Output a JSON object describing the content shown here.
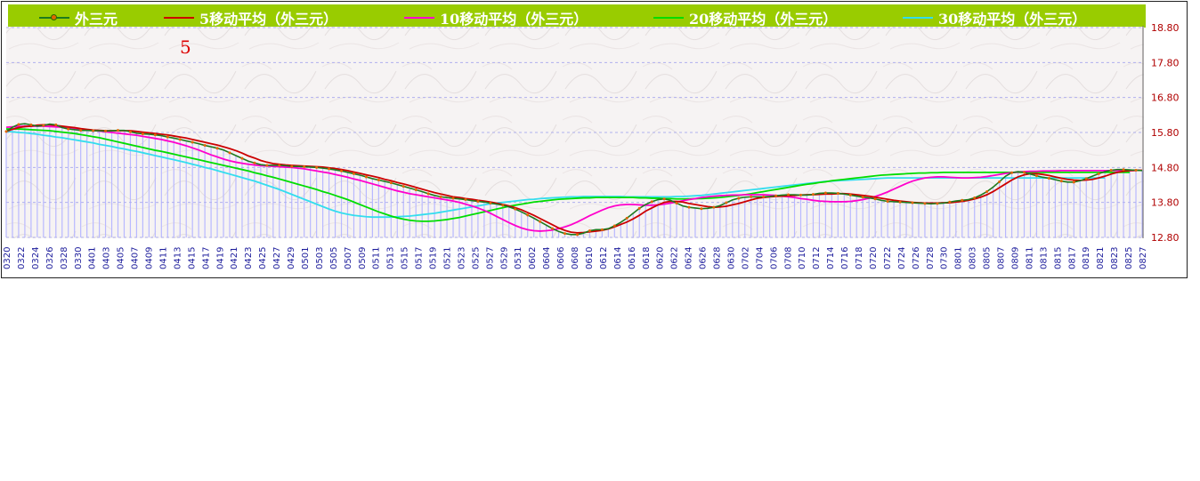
{
  "legend": {
    "items": [
      {
        "label": "外三元",
        "color": "#1e7a1e",
        "marker": true
      },
      {
        "label": "5移动平均（外三元）",
        "color": "#cc0000"
      },
      {
        "label": "10移动平均（外三元）",
        "color": "#ff00cc"
      },
      {
        "label": "20移动平均（外三元）",
        "color": "#00dd00"
      },
      {
        "label": "30移动平均（外三元）",
        "color": "#33ddee"
      }
    ]
  },
  "annotation": "5",
  "colors": {
    "legend_bg": "#99cc00",
    "bars": "#b8b8ff",
    "grid": "#b0b0ee",
    "price": "#1e7a1e",
    "price_marker": "#e06600"
  },
  "chart_data": {
    "type": "line",
    "title": "",
    "xlabel": "",
    "ylabel": "",
    "ylim": [
      12.8,
      18.8
    ],
    "yticks": [
      "12.80",
      "13.80",
      "14.80",
      "15.80",
      "16.80",
      "17.80",
      "18.80"
    ],
    "y_axis_position": "right",
    "grid": true,
    "legend_position": "top",
    "x_tick_labels": [
      "0320",
      "0322",
      "0324",
      "0326",
      "0328",
      "0330",
      "0401",
      "0403",
      "0405",
      "0407",
      "0409",
      "0411",
      "0413",
      "0415",
      "0417",
      "0419",
      "0421",
      "0423",
      "0425",
      "0427",
      "0429",
      "0501",
      "0503",
      "0505",
      "0507",
      "0509",
      "0511",
      "0513",
      "0515",
      "0517",
      "0519",
      "0521",
      "0523",
      "0525",
      "0527",
      "0529",
      "0531",
      "0602",
      "0604",
      "0606",
      "0608",
      "0610",
      "0612",
      "0614",
      "0616",
      "0618",
      "0620",
      "0622",
      "0624",
      "0626",
      "0628",
      "0630",
      "0702",
      "0704",
      "0706",
      "0708",
      "0710",
      "0712",
      "0714",
      "0716",
      "0718",
      "0720",
      "0722",
      "0724",
      "0726",
      "0728",
      "0730",
      "0801",
      "0803",
      "0805",
      "0807",
      "0809",
      "0811",
      "0813",
      "0815",
      "0817",
      "0819",
      "0821",
      "0823",
      "0825",
      "0827"
    ],
    "series": [
      {
        "name": "外三元",
        "values": [
          15.83,
          15.95,
          16.03,
          16.05,
          16.02,
          15.98,
          16.0,
          16.04,
          16.02,
          15.94,
          15.9,
          15.88,
          15.86,
          15.86,
          15.85,
          15.85,
          15.84,
          15.85,
          15.86,
          15.86,
          15.82,
          15.78,
          15.76,
          15.75,
          15.73,
          15.71,
          15.67,
          15.64,
          15.6,
          15.56,
          15.52,
          15.48,
          15.43,
          15.39,
          15.35,
          15.3,
          15.22,
          15.14,
          15.06,
          14.98,
          14.93,
          14.88,
          14.86,
          14.86,
          14.86,
          14.85,
          14.83,
          14.83,
          14.82,
          14.81,
          14.8,
          14.78,
          14.76,
          14.73,
          14.7,
          14.66,
          14.62,
          14.58,
          14.53,
          14.48,
          14.44,
          14.4,
          14.36,
          14.31,
          14.26,
          14.21,
          14.16,
          14.11,
          14.05,
          14.0,
          13.96,
          13.94,
          13.92,
          13.9,
          13.88,
          13.85,
          13.83,
          13.81,
          13.78,
          13.75,
          13.72,
          13.67,
          13.61,
          13.53,
          13.44,
          13.35,
          13.25,
          13.15,
          13.05,
          12.97,
          12.91,
          12.88,
          12.88,
          12.92,
          12.99,
          13.02,
          13.02,
          13.05,
          13.13,
          13.23,
          13.35,
          13.49,
          13.63,
          13.74,
          13.82,
          13.88,
          13.9,
          13.86,
          13.78,
          13.7,
          13.66,
          13.64,
          13.62,
          13.63,
          13.66,
          13.71,
          13.79,
          13.87,
          13.92,
          13.95,
          13.96,
          13.96,
          13.96,
          13.97,
          13.99,
          14.01,
          14.02,
          14.02,
          14.01,
          14.01,
          14.03,
          14.06,
          14.07,
          14.07,
          14.06,
          14.04,
          14.01,
          13.98,
          13.95,
          13.93,
          13.9,
          13.86,
          13.83,
          13.82,
          13.81,
          13.8,
          13.79,
          13.78,
          13.77,
          13.76,
          13.77,
          13.78,
          13.81,
          13.84,
          13.86,
          13.88,
          13.93,
          14.01,
          14.11,
          14.24,
          14.39,
          14.55,
          14.65,
          14.68,
          14.66,
          14.61,
          14.56,
          14.52,
          14.49,
          14.45,
          14.41,
          14.38,
          14.38,
          14.42,
          14.48,
          14.55,
          14.62,
          14.68,
          14.72,
          14.74,
          14.74,
          14.73,
          14.72,
          14.71
        ]
      },
      {
        "name": "5移动平均（外三元）",
        "values": [
          15.83,
          15.89,
          15.94,
          15.97,
          15.98,
          16.01,
          16.02,
          16.02,
          16.0,
          15.98,
          15.96,
          15.94,
          15.91,
          15.89,
          15.87,
          15.86,
          15.85,
          15.85,
          15.85,
          15.85,
          15.85,
          15.83,
          15.81,
          15.79,
          15.77,
          15.75,
          15.73,
          15.7,
          15.67,
          15.64,
          15.6,
          15.56,
          15.52,
          15.48,
          15.44,
          15.39,
          15.34,
          15.28,
          15.21,
          15.13,
          15.07,
          15.0,
          14.95,
          14.91,
          14.89,
          14.87,
          14.86,
          14.85,
          14.84,
          14.83,
          14.82,
          14.81,
          14.79,
          14.77,
          14.74,
          14.71,
          14.67,
          14.63,
          14.59,
          14.55,
          14.51,
          14.46,
          14.42,
          14.37,
          14.33,
          14.28,
          14.23,
          14.18,
          14.13,
          14.08,
          14.04,
          14.0,
          13.96,
          13.94,
          13.91,
          13.89,
          13.86,
          13.84,
          13.81,
          13.78,
          13.74,
          13.7,
          13.65,
          13.59,
          13.51,
          13.43,
          13.34,
          13.25,
          13.16,
          13.07,
          13.0,
          12.95,
          12.93,
          12.94,
          12.96,
          12.98,
          13.0,
          13.04,
          13.1,
          13.17,
          13.24,
          13.33,
          13.43,
          13.55,
          13.64,
          13.73,
          13.8,
          13.83,
          13.83,
          13.81,
          13.77,
          13.74,
          13.71,
          13.68,
          13.66,
          13.67,
          13.69,
          13.73,
          13.77,
          13.82,
          13.87,
          13.92,
          13.94,
          13.96,
          13.97,
          13.98,
          13.99,
          14.0,
          14.01,
          14.02,
          14.02,
          14.03,
          14.04,
          14.04,
          14.05,
          14.05,
          14.04,
          14.02,
          14.0,
          13.98,
          13.95,
          13.92,
          13.89,
          13.86,
          13.84,
          13.82,
          13.8,
          13.79,
          13.78,
          13.78,
          13.78,
          13.79,
          13.79,
          13.81,
          13.83,
          13.86,
          13.9,
          13.95,
          14.02,
          14.11,
          14.22,
          14.33,
          14.44,
          14.53,
          14.59,
          14.62,
          14.62,
          14.6,
          14.57,
          14.53,
          14.49,
          14.46,
          14.44,
          14.43,
          14.44,
          14.46,
          14.5,
          14.55,
          14.61,
          14.66,
          14.69,
          14.71,
          14.72,
          14.72
        ]
      },
      {
        "name": "10移动平均（外三元）",
        "values": [
          15.95,
          15.96,
          15.97,
          15.98,
          15.98,
          15.98,
          15.98,
          15.97,
          15.96,
          15.95,
          15.94,
          15.92,
          15.9,
          15.88,
          15.86,
          15.84,
          15.82,
          15.8,
          15.78,
          15.76,
          15.74,
          15.72,
          15.69,
          15.66,
          15.63,
          15.6,
          15.56,
          15.52,
          15.47,
          15.42,
          15.36,
          15.3,
          15.23,
          15.16,
          15.1,
          15.04,
          14.99,
          14.95,
          14.92,
          14.89,
          14.87,
          14.85,
          14.84,
          14.83,
          14.82,
          14.81,
          14.8,
          14.78,
          14.76,
          14.73,
          14.7,
          14.67,
          14.64,
          14.6,
          14.56,
          14.52,
          14.47,
          14.43,
          14.38,
          14.33,
          14.28,
          14.23,
          14.18,
          14.13,
          14.09,
          14.05,
          14.02,
          13.99,
          13.96,
          13.93,
          13.9,
          13.87,
          13.84,
          13.8,
          13.75,
          13.7,
          13.64,
          13.57,
          13.49,
          13.4,
          13.31,
          13.22,
          13.14,
          13.07,
          13.02,
          12.99,
          12.98,
          12.99,
          13.01,
          13.05,
          13.1,
          13.16,
          13.24,
          13.33,
          13.42,
          13.5,
          13.58,
          13.65,
          13.7,
          13.73,
          13.74,
          13.74,
          13.73,
          13.72,
          13.72,
          13.73,
          13.75,
          13.78,
          13.81,
          13.85,
          13.88,
          13.91,
          13.94,
          13.96,
          13.98,
          13.99,
          14.0,
          14.01,
          14.01,
          14.02,
          14.02,
          14.02,
          14.02,
          14.01,
          14.0,
          13.98,
          13.96,
          13.94,
          13.91,
          13.89,
          13.86,
          13.84,
          13.83,
          13.82,
          13.82,
          13.82,
          13.83,
          13.85,
          13.88,
          13.92,
          13.97,
          14.03,
          14.1,
          14.18,
          14.26,
          14.34,
          14.41,
          14.46,
          14.5,
          14.52,
          14.53,
          14.53,
          14.52,
          14.51,
          14.5,
          14.5,
          14.51,
          14.52,
          14.54,
          14.57,
          14.6,
          14.63,
          14.65,
          14.67,
          14.68,
          14.69,
          14.69,
          14.7,
          14.7,
          14.7,
          14.71,
          14.71,
          14.71,
          14.71,
          14.71,
          14.71,
          14.71,
          14.71,
          14.71,
          14.71,
          14.71,
          14.71,
          14.71
        ]
      },
      {
        "name": "20移动平均（外三元）",
        "values": [
          15.9,
          15.9,
          15.9,
          15.89,
          15.88,
          15.87,
          15.86,
          15.85,
          15.83,
          15.81,
          15.79,
          15.77,
          15.74,
          15.71,
          15.68,
          15.65,
          15.61,
          15.57,
          15.53,
          15.49,
          15.45,
          15.41,
          15.37,
          15.33,
          15.29,
          15.26,
          15.22,
          15.18,
          15.14,
          15.1,
          15.06,
          15.02,
          14.98,
          14.94,
          14.9,
          14.86,
          14.82,
          14.78,
          14.74,
          14.7,
          14.65,
          14.61,
          14.56,
          14.52,
          14.47,
          14.42,
          14.37,
          14.32,
          14.27,
          14.22,
          14.17,
          14.11,
          14.06,
          14.0,
          13.94,
          13.88,
          13.81,
          13.74,
          13.67,
          13.6,
          13.53,
          13.47,
          13.41,
          13.36,
          13.32,
          13.29,
          13.27,
          13.26,
          13.26,
          13.27,
          13.29,
          13.31,
          13.34,
          13.37,
          13.41,
          13.45,
          13.49,
          13.53,
          13.57,
          13.61,
          13.65,
          13.69,
          13.72,
          13.75,
          13.78,
          13.81,
          13.83,
          13.85,
          13.87,
          13.89,
          13.9,
          13.91,
          13.92,
          13.93,
          13.93,
          13.94,
          13.94,
          13.94,
          13.94,
          13.94,
          13.94,
          13.94,
          13.93,
          13.93,
          13.92,
          13.92,
          13.91,
          13.91,
          13.9,
          13.9,
          13.9,
          13.91,
          13.91,
          13.92,
          13.93,
          13.94,
          13.96,
          13.98,
          14.0,
          14.02,
          14.05,
          14.08,
          14.11,
          14.14,
          14.17,
          14.2,
          14.23,
          14.26,
          14.29,
          14.32,
          14.34,
          14.37,
          14.39,
          14.42,
          14.44,
          14.46,
          14.48,
          14.5,
          14.52,
          14.54,
          14.56,
          14.58,
          14.59,
          14.6,
          14.61,
          14.62,
          14.63,
          14.64,
          14.64,
          14.65,
          14.65,
          14.66,
          14.66,
          14.66,
          14.66,
          14.66,
          14.66,
          14.66,
          14.66,
          14.66,
          14.66,
          14.66,
          14.66,
          14.66,
          14.66,
          14.66,
          14.66,
          14.66,
          14.66,
          14.66,
          14.66,
          14.66,
          14.66,
          14.66,
          14.66,
          14.66,
          14.66,
          14.66,
          14.66,
          14.66,
          14.66,
          14.66
        ]
      },
      {
        "name": "30移动平均（外三元）",
        "values": [
          15.83,
          15.82,
          15.8,
          15.79,
          15.77,
          15.75,
          15.72,
          15.7,
          15.67,
          15.65,
          15.62,
          15.59,
          15.56,
          15.53,
          15.5,
          15.46,
          15.43,
          15.4,
          15.36,
          15.33,
          15.29,
          15.26,
          15.22,
          15.18,
          15.14,
          15.1,
          15.06,
          15.02,
          14.98,
          14.94,
          14.89,
          14.85,
          14.8,
          14.76,
          14.71,
          14.66,
          14.61,
          14.56,
          14.51,
          14.46,
          14.41,
          14.35,
          14.29,
          14.23,
          14.17,
          14.1,
          14.03,
          13.96,
          13.89,
          13.82,
          13.75,
          13.68,
          13.61,
          13.55,
          13.5,
          13.46,
          13.43,
          13.41,
          13.39,
          13.38,
          13.38,
          13.38,
          13.38,
          13.39,
          13.4,
          13.41,
          13.43,
          13.45,
          13.47,
          13.49,
          13.52,
          13.55,
          13.58,
          13.61,
          13.64,
          13.67,
          13.7,
          13.73,
          13.76,
          13.78,
          13.8,
          13.82,
          13.84,
          13.86,
          13.88,
          13.89,
          13.91,
          13.92,
          13.93,
          13.94,
          13.95,
          13.96,
          13.96,
          13.97,
          13.97,
          13.97,
          13.97,
          13.97,
          13.97,
          13.97,
          13.96,
          13.96,
          13.96,
          13.96,
          13.96,
          13.96,
          13.96,
          13.96,
          13.97,
          13.97,
          13.98,
          13.99,
          14.0,
          14.02,
          14.04,
          14.06,
          14.08,
          14.1,
          14.12,
          14.14,
          14.16,
          14.18,
          14.2,
          14.22,
          14.24,
          14.26,
          14.28,
          14.3,
          14.32,
          14.34,
          14.36,
          14.38,
          14.4,
          14.41,
          14.42,
          14.43,
          14.44,
          14.45,
          14.46,
          14.47,
          14.48,
          14.49,
          14.5,
          14.5,
          14.5,
          14.5,
          14.5,
          14.5,
          14.5,
          14.5,
          14.5,
          14.5,
          14.5,
          14.5,
          14.5,
          14.5,
          14.5,
          14.5,
          14.5,
          14.5,
          14.5,
          14.5,
          14.5,
          14.5,
          14.5,
          14.5,
          14.5,
          14.5,
          14.5,
          14.5,
          14.5,
          14.5,
          14.5,
          14.5,
          14.5,
          14.5,
          14.5,
          14.5
        ]
      }
    ]
  }
}
